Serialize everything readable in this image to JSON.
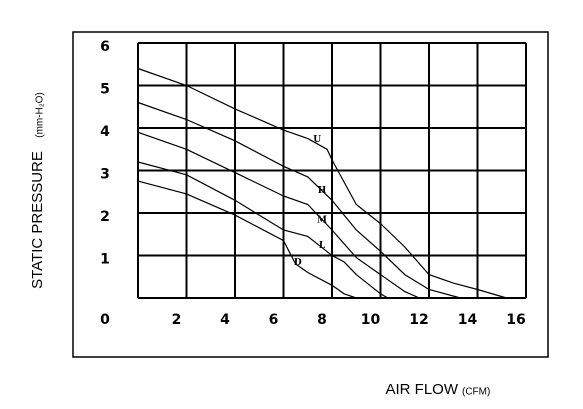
{
  "chart_data": {
    "type": "line",
    "x_label": "AIR FLOW",
    "x_unit": "(CFM)",
    "y_label": "STATIC PRESSURE",
    "y_unit": "(mm-H₂O)",
    "xlim": [
      0,
      16
    ],
    "xticks": [
      0,
      2,
      4,
      6,
      8,
      10,
      12,
      14,
      16
    ],
    "ylim": [
      0,
      6
    ],
    "yticks": [
      1,
      2,
      3,
      4,
      5,
      6
    ],
    "grid": true,
    "series": [
      {
        "name": "U",
        "color": "#000000",
        "x": [
          0,
          2,
          4,
          6,
          7,
          7.8,
          8,
          9,
          10,
          11,
          12,
          13,
          14,
          15.2
        ],
        "values": [
          5.4,
          5.0,
          4.45,
          3.95,
          3.75,
          3.5,
          3.25,
          2.2,
          1.75,
          1.2,
          0.55,
          0.35,
          0.2,
          0
        ]
      },
      {
        "name": "H",
        "color": "#000000",
        "x": [
          0,
          2,
          4,
          6,
          7,
          8,
          9,
          10,
          11,
          12,
          13.3
        ],
        "values": [
          4.6,
          4.2,
          3.7,
          3.1,
          2.85,
          2.3,
          1.6,
          1.1,
          0.55,
          0.2,
          0
        ]
      },
      {
        "name": "M",
        "color": "#000000",
        "x": [
          0,
          2,
          4,
          6,
          7,
          8,
          9,
          10,
          11,
          11.6
        ],
        "values": [
          3.9,
          3.5,
          2.95,
          2.4,
          2.2,
          1.6,
          0.95,
          0.55,
          0.15,
          0
        ]
      },
      {
        "name": "L",
        "color": "#000000",
        "x": [
          0,
          2,
          4,
          6,
          7,
          8,
          8.5,
          9,
          10,
          10.3
        ],
        "values": [
          3.2,
          2.9,
          2.3,
          1.6,
          1.45,
          1.0,
          0.85,
          0.55,
          0.1,
          0
        ]
      },
      {
        "name": "D",
        "color": "#000000",
        "x": [
          0,
          2,
          4,
          6,
          6.5,
          7,
          8,
          8.5,
          9
        ],
        "values": [
          2.75,
          2.45,
          1.95,
          1.35,
          0.8,
          0.6,
          0.3,
          0.1,
          0
        ]
      }
    ]
  }
}
